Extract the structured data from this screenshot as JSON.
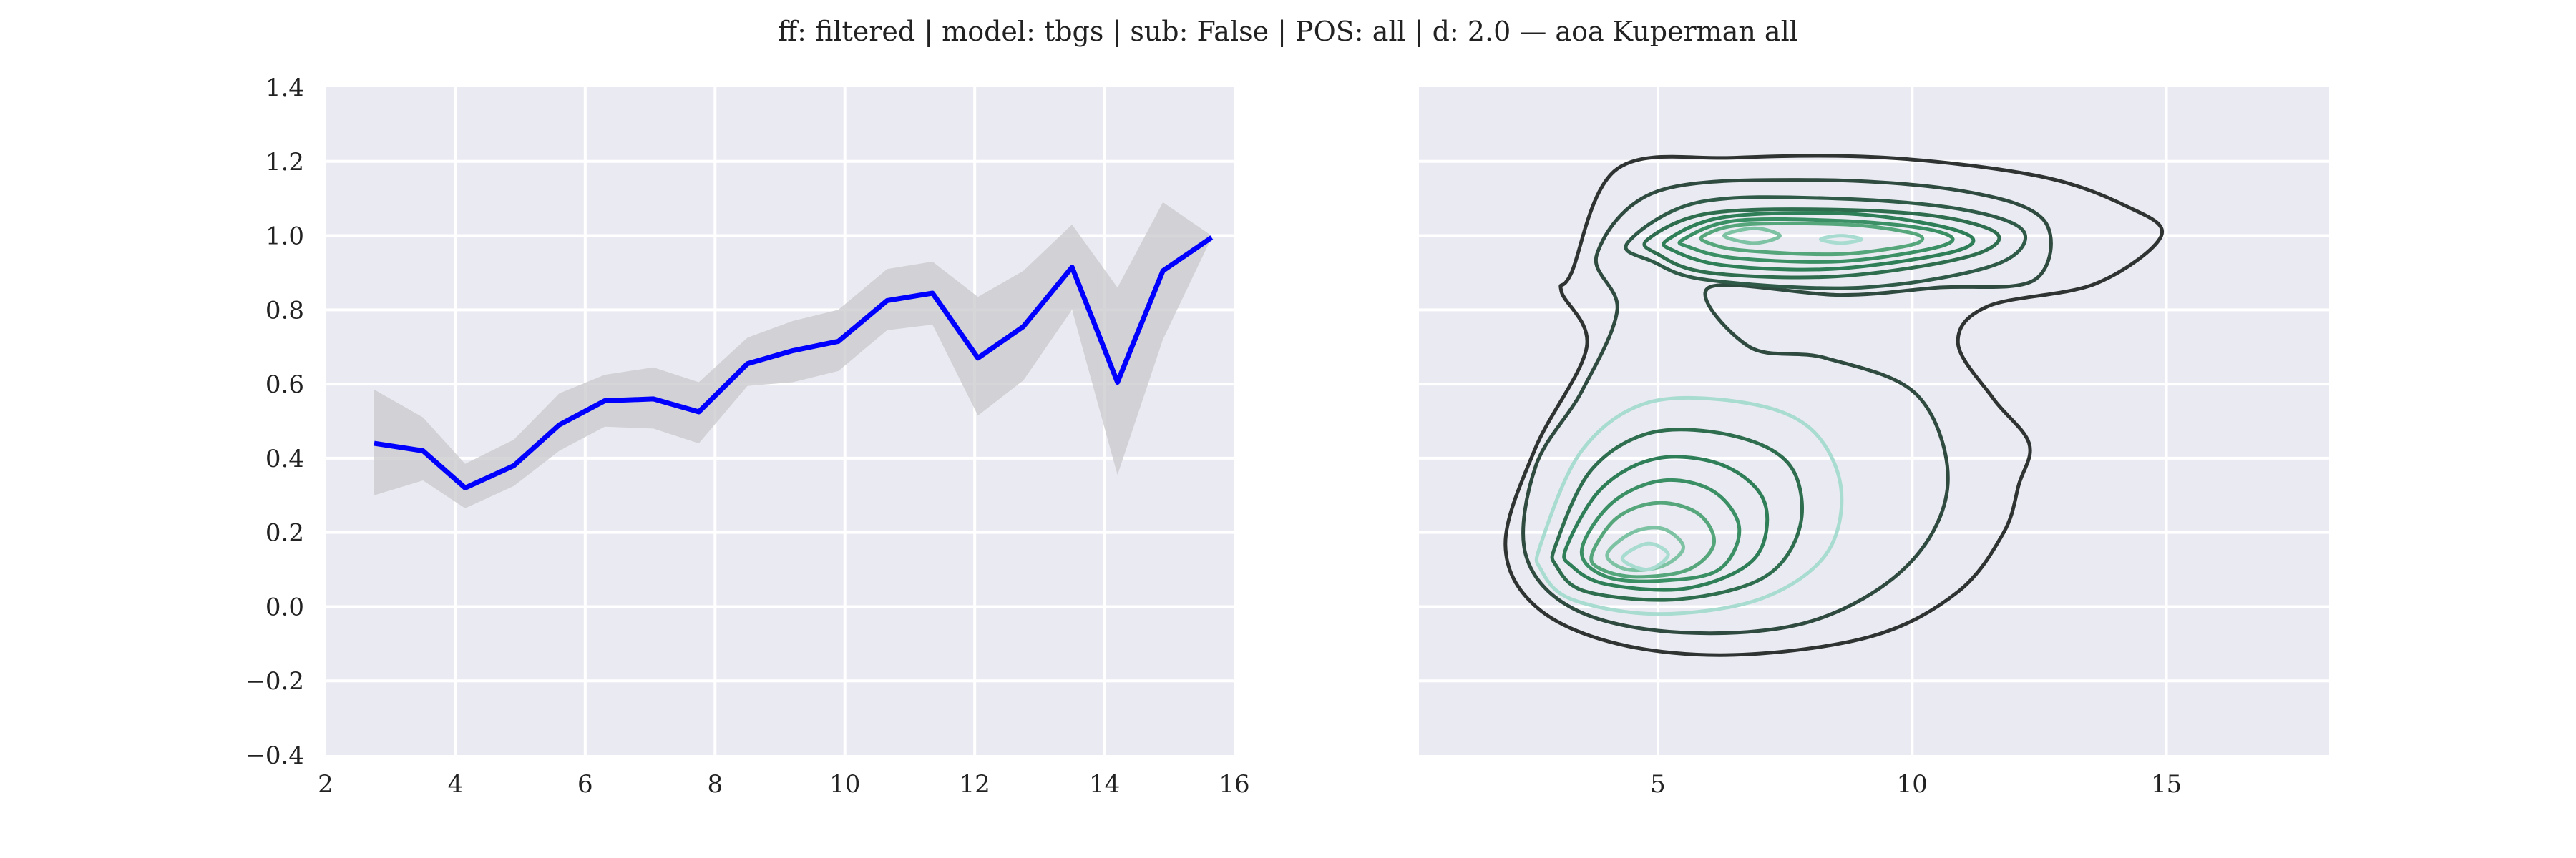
{
  "title": "ff: filtered | model: tbgs | sub: False | POS: all | d: 2.0 — aoa Kuperman all",
  "colors": {
    "panel_bg": "#eaeaf2",
    "grid": "#ffffff",
    "line": "#0000ff",
    "band": "#c8c8cc",
    "contour_dark": "#2f2f2f",
    "contour_mid": "#2e8b57",
    "contour_light": "#a8dcd0"
  },
  "chart_data": [
    {
      "type": "line",
      "x": [
        2.75,
        3.5,
        4.15,
        4.9,
        5.6,
        6.3,
        7.05,
        7.75,
        8.5,
        9.2,
        9.9,
        10.65,
        11.35,
        12.05,
        12.75,
        13.5,
        14.2,
        14.9,
        15.65
      ],
      "series": [
        {
          "values": [
            0.44,
            0.42,
            0.32,
            0.38,
            0.49,
            0.555,
            0.56,
            0.525,
            0.655,
            0.69,
            0.715,
            0.825,
            0.845,
            0.67,
            0.755,
            0.915,
            0.605,
            0.905,
            0.995
          ],
          "ci_upper": [
            0.585,
            0.51,
            0.385,
            0.45,
            0.575,
            0.625,
            0.645,
            0.605,
            0.725,
            0.77,
            0.8,
            0.91,
            0.93,
            0.835,
            0.905,
            1.03,
            0.86,
            1.09,
            1.0
          ],
          "ci_lower": [
            0.3,
            0.34,
            0.265,
            0.325,
            0.42,
            0.485,
            0.48,
            0.44,
            0.595,
            0.605,
            0.635,
            0.745,
            0.76,
            0.515,
            0.61,
            0.8,
            0.355,
            0.72,
            0.995
          ]
        }
      ],
      "xlim": [
        2,
        16
      ],
      "ylim": [
        -0.4,
        1.4
      ],
      "xticks": [
        "2",
        "4",
        "6",
        "8",
        "10",
        "12",
        "14",
        "16"
      ],
      "yticks": [
        "−0.4",
        "−0.2",
        "0.0",
        "0.2",
        "0.4",
        "0.6",
        "0.8",
        "1.0",
        "1.2",
        "1.4"
      ],
      "grid": true
    },
    {
      "type": "kde_contour",
      "xlim": [
        0.3,
        18.2
      ],
      "ylim": [
        -0.4,
        1.4
      ],
      "xticks": [
        "5",
        "10",
        "15"
      ],
      "grid": true,
      "modes": [
        {
          "x": 4.8,
          "y": 0.13
        },
        {
          "x": 6.7,
          "y": 1.0
        },
        {
          "x": 8.6,
          "y": 0.99
        }
      ],
      "levels": 10
    }
  ]
}
